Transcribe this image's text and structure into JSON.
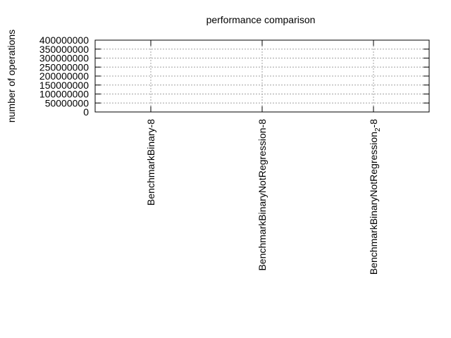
{
  "chart_data": {
    "type": "bar",
    "title": "performance comparison",
    "ylabel": "number of operations",
    "xlabel": "",
    "categories": [
      "BenchmarkBinary-8",
      "BenchmarkBinaryNotRegression-8",
      "BenchmarkBinaryNotRegression_2-8"
    ],
    "category_display": [
      [
        {
          "t": "BenchmarkBinary-8"
        }
      ],
      [
        {
          "t": "BenchmarkBinaryNotRegression-8"
        }
      ],
      [
        {
          "t": "BenchmarkBinaryNotRegression"
        },
        {
          "t": "2",
          "sub": true
        },
        {
          "t": "-8"
        }
      ]
    ],
    "series": [
      {
        "values": [
          0,
          0,
          0
        ]
      }
    ],
    "ylim": [
      0,
      400000000
    ],
    "yticks": [
      0,
      50000000,
      100000000,
      150000000,
      200000000,
      250000000,
      300000000,
      350000000,
      400000000
    ],
    "ytick_labels": [
      "0",
      "50000000",
      "100000000",
      "150000000",
      "200000000",
      "250000000",
      "300000000",
      "350000000",
      "400000000"
    ],
    "grid": true,
    "grid_style": "dotted",
    "colors": {
      "axis": "#000000",
      "grid": "#a0a0a0",
      "bar": "#9400d3"
    }
  }
}
